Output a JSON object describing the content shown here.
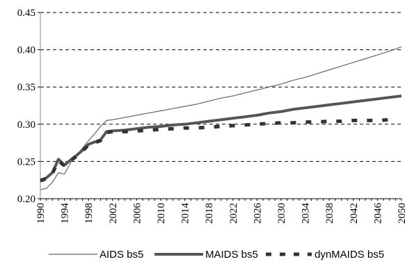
{
  "chart_data": {
    "type": "line",
    "title": "",
    "xlabel": "",
    "ylabel": "",
    "xlim": [
      1990,
      2050
    ],
    "ylim": [
      0.2,
      0.45
    ],
    "grid": "horizontal dashed",
    "legend_position": "bottom",
    "y_ticks": [
      "0.20",
      "0.25",
      "0.30",
      "0.35",
      "0.40",
      "0.45"
    ],
    "x_ticks": [
      "1990",
      "1994",
      "1998",
      "2002",
      "2006",
      "2010",
      "2014",
      "2018",
      "2022",
      "2026",
      "2030",
      "2034",
      "2038",
      "2042",
      "2046",
      "2050"
    ],
    "series": [
      {
        "name": "AIDS bs5",
        "style": "thin",
        "color": "#666666",
        "x": [
          1990,
          1991,
          1992,
          1993,
          1994,
          1995,
          1996,
          1997,
          1998,
          1999,
          2000,
          2001,
          2002,
          2004,
          2006,
          2008,
          2010,
          2012,
          2014,
          2016,
          2018,
          2020,
          2022,
          2024,
          2026,
          2028,
          2030,
          2032,
          2034,
          2036,
          2038,
          2040,
          2042,
          2044,
          2046,
          2048,
          2050
        ],
        "y": [
          0.212,
          0.214,
          0.222,
          0.235,
          0.233,
          0.248,
          0.258,
          0.268,
          0.278,
          0.287,
          0.297,
          0.305,
          0.306,
          0.309,
          0.312,
          0.315,
          0.318,
          0.321,
          0.324,
          0.327,
          0.331,
          0.335,
          0.338,
          0.342,
          0.346,
          0.35,
          0.354,
          0.359,
          0.363,
          0.368,
          0.373,
          0.378,
          0.383,
          0.388,
          0.393,
          0.398,
          0.404
        ]
      },
      {
        "name": "MAIDS bs5",
        "style": "thick",
        "color": "#555555",
        "x": [
          1990,
          1991,
          1992,
          1993,
          1994,
          1995,
          1996,
          1997,
          1998,
          1999,
          2000,
          2001,
          2002,
          2004,
          2006,
          2008,
          2010,
          2012,
          2014,
          2016,
          2018,
          2020,
          2022,
          2024,
          2026,
          2028,
          2030,
          2032,
          2034,
          2036,
          2038,
          2040,
          2042,
          2044,
          2046,
          2048,
          2050
        ],
        "y": [
          0.225,
          0.228,
          0.235,
          0.253,
          0.245,
          0.252,
          0.258,
          0.265,
          0.273,
          0.276,
          0.279,
          0.29,
          0.291,
          0.292,
          0.294,
          0.296,
          0.297,
          0.299,
          0.3,
          0.302,
          0.304,
          0.306,
          0.308,
          0.31,
          0.312,
          0.315,
          0.317,
          0.32,
          0.322,
          0.324,
          0.326,
          0.328,
          0.33,
          0.332,
          0.334,
          0.336,
          0.338
        ]
      },
      {
        "name": "dynMAIDS bs5",
        "style": "dashed",
        "color": "#333333",
        "x": [
          1990,
          1991,
          1992,
          1993,
          1994,
          1995,
          1996,
          1997,
          1998,
          1999,
          2000,
          2001,
          2002,
          2004,
          2006,
          2008,
          2010,
          2012,
          2014,
          2016,
          2018,
          2020,
          2022,
          2024,
          2026,
          2028,
          2030,
          2032,
          2034,
          2036,
          2038,
          2040,
          2042,
          2044,
          2046,
          2048
        ],
        "y": [
          0.224,
          0.227,
          0.234,
          0.251,
          0.244,
          0.251,
          0.257,
          0.264,
          0.272,
          0.275,
          0.278,
          0.289,
          0.29,
          0.29,
          0.291,
          0.292,
          0.293,
          0.294,
          0.295,
          0.295,
          0.296,
          0.297,
          0.298,
          0.299,
          0.3,
          0.301,
          0.302,
          0.302,
          0.303,
          0.303,
          0.304,
          0.304,
          0.305,
          0.305,
          0.305,
          0.306
        ]
      }
    ]
  }
}
